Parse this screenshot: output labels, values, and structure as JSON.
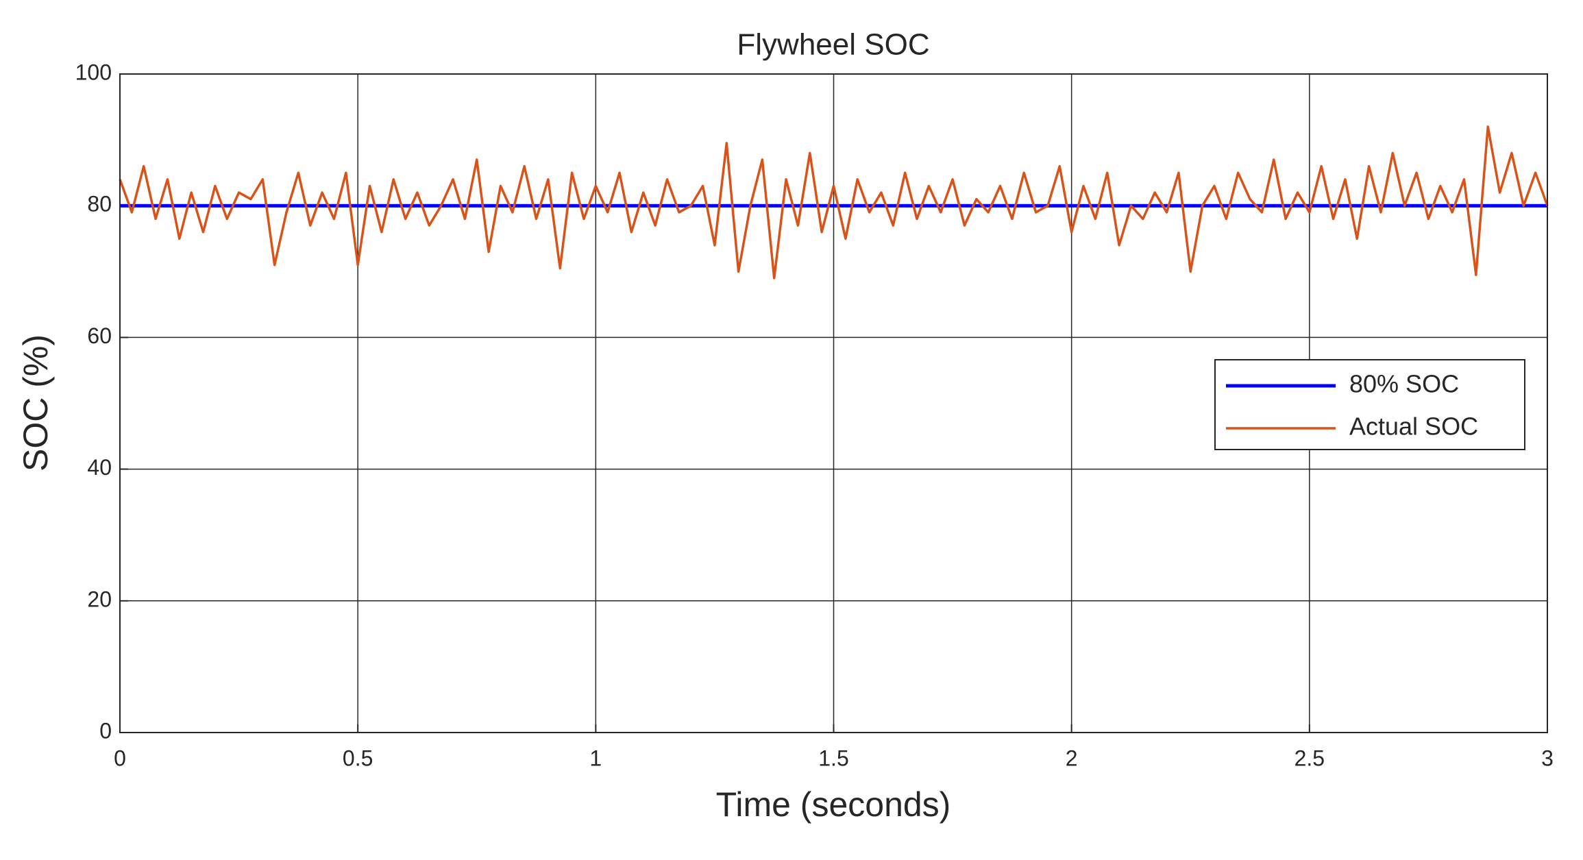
{
  "chart_data": {
    "type": "line",
    "title": "Flywheel SOC",
    "x_label": "Time (seconds)",
    "y_label": "SOC (%)",
    "xlim": [
      0,
      3
    ],
    "xticks": [
      0,
      0.5,
      1,
      1.5,
      2,
      2.5,
      3
    ],
    "ylim": [
      0,
      100
    ],
    "yticks": [
      0,
      20,
      40,
      60,
      80,
      100
    ],
    "grid": true,
    "legend": "right",
    "series": [
      {
        "name": "80% SOC",
        "color": "#0000ff",
        "x": [
          0,
          3
        ],
        "values": [
          80,
          80
        ]
      },
      {
        "name": "Actual SOC",
        "color": "#d95319",
        "x": [
          0,
          0.025,
          0.05,
          0.075,
          0.1,
          0.125,
          0.15,
          0.175,
          0.2,
          0.225,
          0.25,
          0.275,
          0.3,
          0.325,
          0.35,
          0.375,
          0.4,
          0.425,
          0.45,
          0.475,
          0.5,
          0.525,
          0.55,
          0.575,
          0.6,
          0.625,
          0.65,
          0.675,
          0.7,
          0.725,
          0.75,
          0.775,
          0.8,
          0.825,
          0.85,
          0.875,
          0.9,
          0.925,
          0.95,
          0.975,
          1,
          1.025,
          1.05,
          1.075,
          1.1,
          1.125,
          1.15,
          1.175,
          1.2,
          1.225,
          1.25,
          1.275,
          1.3,
          1.325,
          1.35,
          1.375,
          1.4,
          1.425,
          1.45,
          1.475,
          1.5,
          1.525,
          1.55,
          1.575,
          1.6,
          1.625,
          1.65,
          1.675,
          1.7,
          1.725,
          1.75,
          1.775,
          1.8,
          1.825,
          1.85,
          1.875,
          1.9,
          1.925,
          1.95,
          1.975,
          2,
          2.025,
          2.05,
          2.075,
          2.1,
          2.125,
          2.15,
          2.175,
          2.2,
          2.225,
          2.25,
          2.275,
          2.3,
          2.325,
          2.35,
          2.375,
          2.4,
          2.425,
          2.45,
          2.475,
          2.5,
          2.525,
          2.55,
          2.575,
          2.6,
          2.625,
          2.65,
          2.675,
          2.7,
          2.725,
          2.75,
          2.775,
          2.8,
          2.825,
          2.85,
          2.875,
          2.9,
          2.925,
          2.95,
          2.975,
          3
        ],
        "values": [
          84,
          79,
          86,
          78,
          84,
          75,
          82,
          76,
          83,
          78,
          82,
          81,
          84,
          71,
          79,
          85,
          77,
          82,
          78,
          85,
          71,
          83,
          76,
          84,
          78,
          82,
          77,
          80,
          84,
          78,
          87,
          73,
          83,
          79,
          86,
          78,
          84,
          70.5,
          85,
          78,
          83,
          79,
          85,
          76,
          82,
          77,
          84,
          79,
          80,
          83,
          74,
          89.5,
          70,
          80,
          87,
          69,
          84,
          77,
          88,
          76,
          83,
          75,
          84,
          79,
          82,
          77,
          85,
          78,
          83,
          79,
          84,
          77,
          81,
          79,
          83,
          78,
          85,
          79,
          80,
          86,
          76,
          83,
          78,
          85,
          74,
          80,
          78,
          82,
          79,
          85,
          70,
          80,
          83,
          78,
          85,
          81,
          79,
          87,
          78,
          82,
          79,
          86,
          78,
          84,
          75,
          86,
          79,
          88,
          80,
          85,
          78,
          83,
          79,
          84,
          69.5,
          92,
          82,
          88,
          80,
          85,
          80
        ]
      }
    ]
  }
}
